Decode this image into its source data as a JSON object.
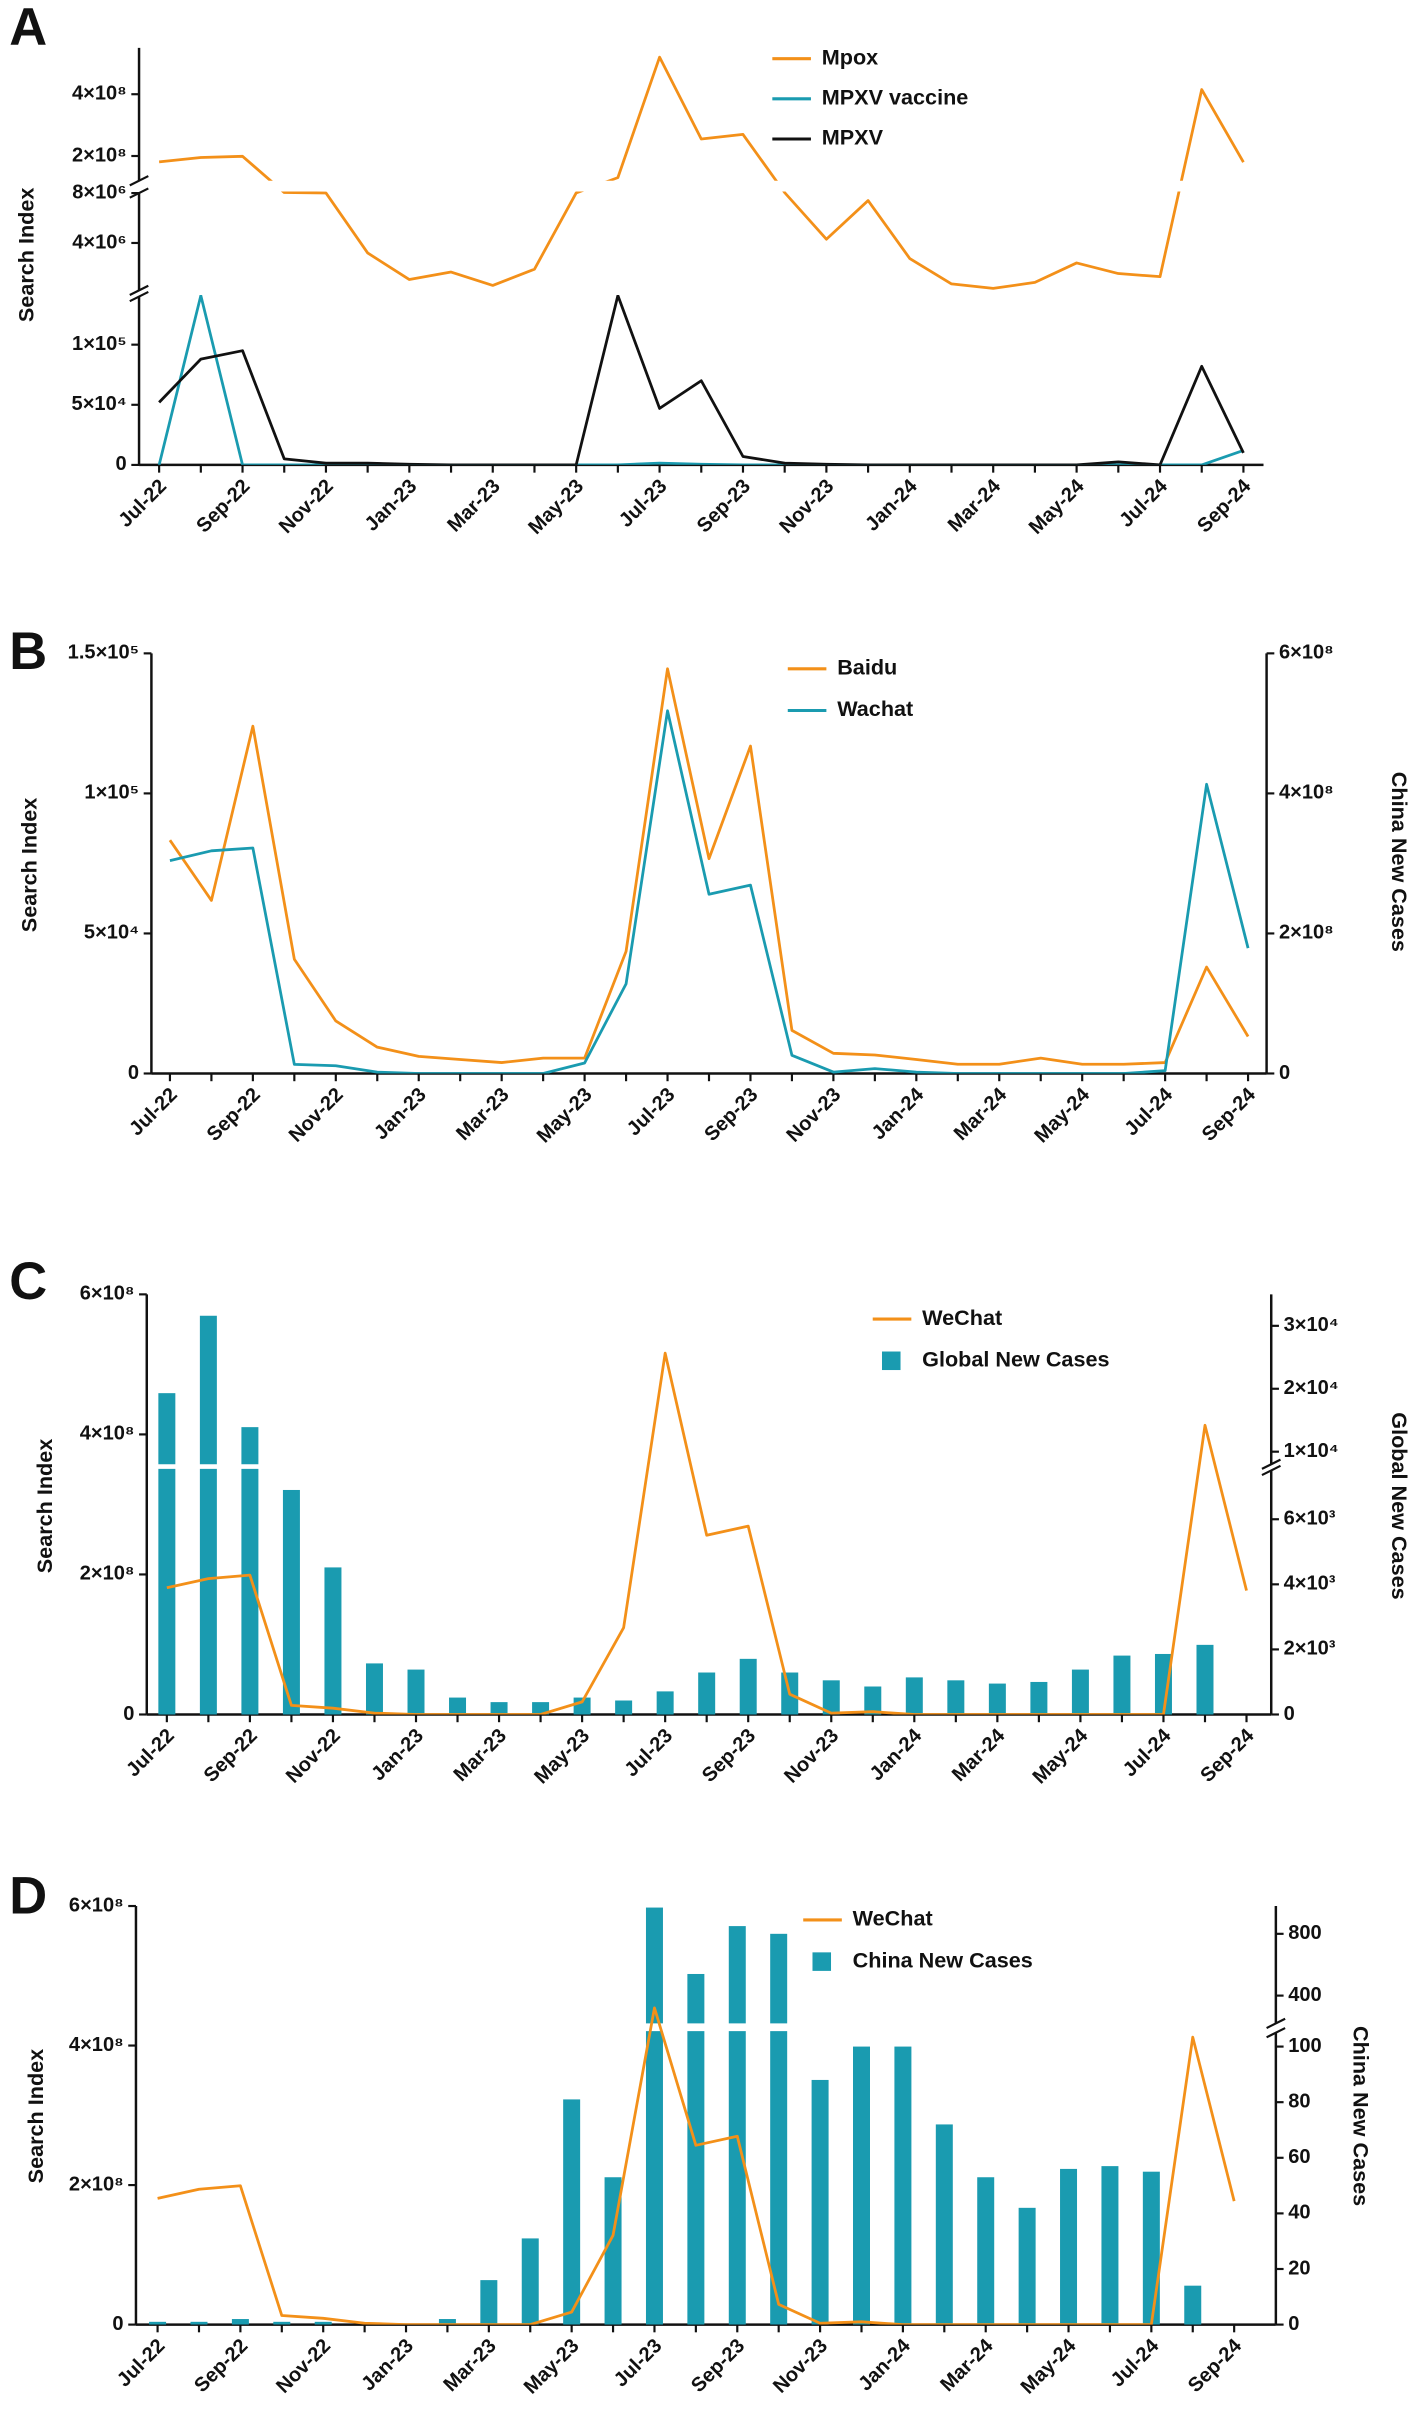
{
  "chart_data": [
    {
      "type": "line",
      "label": "A",
      "y_label": "Search Index",
      "categories": [
        "Jul-22",
        null,
        "Sep-22",
        null,
        "Nov-22",
        null,
        "Jan-23",
        null,
        "Mar-23",
        null,
        "May-23",
        null,
        "Jul-23",
        null,
        "Sep-23",
        null,
        "Nov-23",
        null,
        "Jan-24",
        null,
        "Mar-24",
        null,
        "May-24",
        null,
        "Jul-24",
        null,
        "Sep-24"
      ],
      "y_segments": [
        {
          "ylim": [
            0,
            140000
          ],
          "yticks": [
            0,
            {
              "value": 50000,
              "label": "5×10⁴"
            },
            {
              "value": 100000,
              "label": "1×10⁵"
            }
          ]
        },
        {
          "ylim": [
            200000,
            8000000
          ],
          "yticks": [
            {
              "value": 4000000,
              "label": "4×10⁶"
            },
            {
              "value": 8000000,
              "label": "8×10⁶"
            }
          ]
        },
        {
          "ylim": [
            120000000,
            550000000
          ],
          "yticks": [
            {
              "value": 200000000,
              "label": "2×10⁸"
            },
            {
              "value": 400000000,
              "label": "4×10⁸"
            }
          ]
        }
      ],
      "series": [
        {
          "name": "Mpox",
          "color": "#f39019",
          "type": "line",
          "values": [
            181000000,
            195000000,
            199000000,
            13000000,
            9000000,
            3200000,
            1070000,
            1670000,
            600000,
            1900000,
            9000000,
            130000000,
            520000000,
            255000000,
            270000000,
            12000000,
            4300000,
            7400000,
            2750000,
            720000,
            360000,
            840000,
            2400000,
            1550000,
            1300000,
            415000000,
            180000000
          ]
        },
        {
          "name": "MPXV vaccine",
          "color": "#1a9bb0",
          "type": "line",
          "values": [
            0,
            150000,
            0,
            0,
            0,
            800,
            0,
            0,
            0,
            0,
            0,
            0,
            1500,
            500,
            0,
            0,
            0,
            0,
            0,
            0,
            0,
            0,
            0,
            0,
            0,
            0,
            12000
          ]
        },
        {
          "name": "MPXV",
          "color": "#111111",
          "type": "line",
          "values": [
            52000,
            88000,
            95000,
            5000,
            1500,
            1500,
            500,
            0,
            0,
            0,
            0,
            150000,
            47000,
            70000,
            7000,
            1500,
            500,
            0,
            0,
            0,
            0,
            0,
            0,
            2500,
            0,
            82000,
            10000
          ]
        }
      ]
    },
    {
      "type": "line",
      "label": "B",
      "y_label": "Search Index",
      "y2_label": "China New Cases",
      "categories": [
        "Jul-22",
        null,
        "Sep-22",
        null,
        "Nov-22",
        null,
        "Jan-23",
        null,
        "Mar-23",
        null,
        "May-23",
        null,
        "Jul-23",
        null,
        "Sep-23",
        null,
        "Nov-23",
        null,
        "Jan-24",
        null,
        "Mar-24",
        null,
        "May-24",
        null,
        "Jul-24",
        null,
        "Sep-24"
      ],
      "ylim": [
        0,
        150000
      ],
      "yticks": [
        0,
        {
          "value": 50000,
          "label": "5×10⁴"
        },
        {
          "value": 100000,
          "label": "1×10⁵"
        },
        {
          "value": 150000,
          "label": "1.5×10⁵"
        }
      ],
      "y2lim": [
        0,
        600000000
      ],
      "y2ticks": [
        0,
        {
          "value": 200000000,
          "label": "2×10⁸"
        },
        {
          "value": 400000000,
          "label": "4×10⁸"
        },
        {
          "value": 600000000,
          "label": "6×10⁸"
        }
      ],
      "series": [
        {
          "name": "Baidu",
          "color": "#f39019",
          "type": "line",
          "values": [
            83300,
            61800,
            124000,
            40800,
            18750,
            9400,
            6100,
            5000,
            3900,
            5500,
            5500,
            43600,
            144500,
            76700,
            116900,
            15400,
            7200,
            6600,
            5000,
            3300,
            3300,
            5500,
            3300,
            3300,
            3900,
            38000,
            13200
          ]
        },
        {
          "name": "Wachat",
          "color": "#1a9bb0",
          "type": "line",
          "axis": "y2",
          "values": [
            304000000,
            318000000,
            322000000,
            13000000,
            11000000,
            2000000,
            0,
            0,
            0,
            0,
            15000000,
            128000000,
            518000000,
            256000000,
            269000000,
            26000000,
            2000000,
            7000000,
            2000000,
            0,
            0,
            0,
            0,
            0,
            4000000,
            413000000,
            179000000
          ]
        }
      ]
    },
    {
      "type": "combo",
      "label": "C",
      "y_label": "Search Index",
      "y2_label": "Global New Cases",
      "categories": [
        "Jul-22",
        null,
        "Sep-22",
        null,
        "Nov-22",
        null,
        "Jan-23",
        null,
        "Mar-23",
        null,
        "May-23",
        null,
        "Jul-23",
        null,
        "Sep-23",
        null,
        "Nov-23",
        null,
        "Jan-24",
        null,
        "Mar-24",
        null,
        "May-24",
        null,
        "Jul-24",
        null,
        "Sep-24"
      ],
      "ylim": [
        0,
        600000000
      ],
      "yticks": [
        0,
        {
          "value": 200000000,
          "label": "2×10⁸"
        },
        {
          "value": 400000000,
          "label": "4×10⁸"
        },
        {
          "value": 600000000,
          "label": "6×10⁸"
        }
      ],
      "y2_segments": [
        {
          "ylim": [
            0,
            7500
          ],
          "yticks": [
            0,
            {
              "value": 2000,
              "label": "2×10³"
            },
            {
              "value": 4000,
              "label": "4×10³"
            },
            {
              "value": 6000,
              "label": "6×10³"
            }
          ]
        },
        {
          "ylim": [
            8000,
            35000
          ],
          "yticks": [
            {
              "value": 10000,
              "label": "1×10⁴"
            },
            {
              "value": 20000,
              "label": "2×10⁴"
            },
            {
              "value": 30000,
              "label": "3×10⁴"
            }
          ]
        }
      ],
      "series": [
        {
          "name": "WeChat",
          "color": "#f39019",
          "type": "line",
          "values": [
            181000000,
            194000000,
            199000000,
            13000000,
            9000000,
            2000000,
            0,
            0,
            0,
            0,
            18000000,
            124000000,
            516000000,
            256000000,
            269000000,
            29000000,
            2000000,
            4000000,
            0,
            0,
            0,
            0,
            0,
            0,
            0,
            413000000,
            177000000
          ]
        },
        {
          "name": "Global New Cases",
          "color": "#1a9bb0",
          "type": "bar",
          "axis": "y2",
          "values": [
            19300,
            31600,
            13900,
            6900,
            4520,
            1570,
            1380,
            520,
            380,
            380,
            520,
            430,
            710,
            1290,
            1710,
            1290,
            1050,
            860,
            1140,
            1050,
            950,
            1000,
            1380,
            1810,
            1860,
            2140,
            null
          ]
        }
      ]
    },
    {
      "type": "combo",
      "label": "D",
      "y_label": "Search Index",
      "y2_label": "China New Cases",
      "categories": [
        "Jul-22",
        null,
        "Sep-22",
        null,
        "Nov-22",
        null,
        "Jan-23",
        null,
        "Mar-23",
        null,
        "May-23",
        null,
        "Jul-23",
        null,
        "Sep-23",
        null,
        "Nov-23",
        null,
        "Jan-24",
        null,
        "Mar-24",
        null,
        "May-24",
        null,
        "Jul-24",
        null,
        "Sep-24"
      ],
      "ylim": [
        0,
        600000000
      ],
      "yticks": [
        0,
        {
          "value": 200000000,
          "label": "2×10⁸"
        },
        {
          "value": 400000000,
          "label": "4×10⁸"
        },
        {
          "value": 600000000,
          "label": "6×10⁸"
        }
      ],
      "y2_segments": [
        {
          "ylim": [
            0,
            105
          ],
          "yticks": [
            0,
            20,
            40,
            60,
            80,
            100
          ]
        },
        {
          "ylim": [
            220,
            980
          ],
          "yticks": [
            400,
            800
          ]
        }
      ],
      "series": [
        {
          "name": "WeChat",
          "color": "#f39019",
          "type": "line",
          "values": [
            181000000,
            194000000,
            199000000,
            13000000,
            9000000,
            2000000,
            0,
            0,
            0,
            0,
            18000000,
            128000000,
            454000000,
            257000000,
            270000000,
            29000000,
            2000000,
            4000000,
            0,
            0,
            0,
            0,
            0,
            0,
            0,
            412000000,
            177000000
          ]
        },
        {
          "name": "China New Cases",
          "color": "#1a9bb0",
          "type": "bar",
          "axis": "y2",
          "values": [
            1,
            1,
            2,
            1,
            1,
            0,
            0,
            2,
            16,
            31,
            81,
            53,
            970,
            540,
            850,
            800,
            88,
            100,
            100,
            72,
            53,
            42,
            56,
            57,
            55,
            14,
            null
          ]
        }
      ]
    }
  ]
}
